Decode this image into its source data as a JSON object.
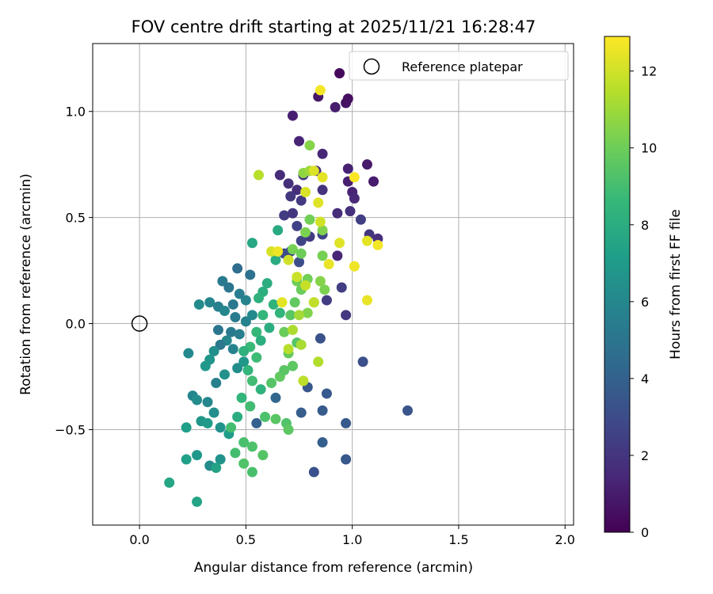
{
  "chart_data": {
    "type": "scatter",
    "title": "FOV centre drift starting at 2025/11/21 16:28:47",
    "xlabel": "Angular distance from reference (arcmin)",
    "ylabel": "Rotation from reference (arcmin)",
    "xlim": [
      -0.22,
      2.04
    ],
    "ylim": [
      -0.95,
      1.32
    ],
    "xticks": [
      0.0,
      0.5,
      1.0,
      1.5,
      2.0
    ],
    "xtick_labels": [
      "0.0",
      "0.5",
      "1.0",
      "1.5",
      "2.0"
    ],
    "yticks": [
      -0.5,
      0.0,
      0.5,
      1.0
    ],
    "ytick_labels": [
      "−0.5",
      "0.0",
      "0.5",
      "1.0"
    ],
    "grid": true,
    "legend": {
      "position": "top-right",
      "entries": [
        "Reference platepar"
      ]
    },
    "reference_point": {
      "x": 0.0,
      "y": 0.0,
      "label": "Reference platepar"
    },
    "colorbar": {
      "label": "Hours from first FF file",
      "range": [
        0,
        12.9
      ],
      "ticks": [
        0,
        2,
        4,
        6,
        8,
        10,
        12
      ],
      "tick_labels": [
        "0",
        "2",
        "4",
        "6",
        "8",
        "10",
        "12"
      ],
      "colormap": [
        "#440154",
        "#482878",
        "#3e4989",
        "#31688e",
        "#26828e",
        "#1f9e89",
        "#35b779",
        "#6ece58",
        "#b5de2b",
        "#fde725"
      ]
    },
    "points": [
      {
        "x": 0.94,
        "y": 1.18,
        "h": 0.3
      },
      {
        "x": 0.98,
        "y": 1.06,
        "h": 0.5
      },
      {
        "x": 0.84,
        "y": 1.07,
        "h": 0.8
      },
      {
        "x": 0.92,
        "y": 1.02,
        "h": 1.0
      },
      {
        "x": 0.97,
        "y": 1.04,
        "h": 0.6
      },
      {
        "x": 0.72,
        "y": 0.98,
        "h": 1.1
      },
      {
        "x": 0.75,
        "y": 0.86,
        "h": 1.3
      },
      {
        "x": 0.86,
        "y": 0.8,
        "h": 1.4
      },
      {
        "x": 0.98,
        "y": 0.73,
        "h": 1.2
      },
      {
        "x": 1.07,
        "y": 0.75,
        "h": 0.9
      },
      {
        "x": 0.83,
        "y": 0.72,
        "h": 1.5
      },
      {
        "x": 0.66,
        "y": 0.7,
        "h": 1.6
      },
      {
        "x": 0.7,
        "y": 0.66,
        "h": 1.8
      },
      {
        "x": 0.74,
        "y": 0.63,
        "h": 1.7
      },
      {
        "x": 0.77,
        "y": 0.7,
        "h": 2.0
      },
      {
        "x": 0.98,
        "y": 0.67,
        "h": 1.1
      },
      {
        "x": 1.0,
        "y": 0.62,
        "h": 1.3
      },
      {
        "x": 1.1,
        "y": 0.67,
        "h": 1.0
      },
      {
        "x": 0.86,
        "y": 0.63,
        "h": 1.9
      },
      {
        "x": 0.71,
        "y": 0.6,
        "h": 2.1
      },
      {
        "x": 0.76,
        "y": 0.58,
        "h": 2.2
      },
      {
        "x": 1.01,
        "y": 0.59,
        "h": 1.5
      },
      {
        "x": 0.68,
        "y": 0.51,
        "h": 2.3
      },
      {
        "x": 0.72,
        "y": 0.52,
        "h": 2.0
      },
      {
        "x": 0.93,
        "y": 0.52,
        "h": 1.6
      },
      {
        "x": 0.99,
        "y": 0.53,
        "h": 1.8
      },
      {
        "x": 1.04,
        "y": 0.49,
        "h": 2.4
      },
      {
        "x": 0.74,
        "y": 0.46,
        "h": 2.5
      },
      {
        "x": 0.8,
        "y": 0.41,
        "h": 2.2
      },
      {
        "x": 0.86,
        "y": 0.42,
        "h": 2.7
      },
      {
        "x": 1.08,
        "y": 0.42,
        "h": 2.0
      },
      {
        "x": 1.12,
        "y": 0.4,
        "h": 1.7
      },
      {
        "x": 0.76,
        "y": 0.39,
        "h": 2.6
      },
      {
        "x": 0.71,
        "y": 0.34,
        "h": 2.8
      },
      {
        "x": 0.68,
        "y": 0.33,
        "h": 3.0
      },
      {
        "x": 0.75,
        "y": 0.29,
        "h": 3.1
      },
      {
        "x": 0.93,
        "y": 0.32,
        "h": 1.4
      },
      {
        "x": 0.95,
        "y": 0.17,
        "h": 2.4
      },
      {
        "x": 0.88,
        "y": 0.11,
        "h": 2.3
      },
      {
        "x": 0.97,
        "y": 0.04,
        "h": 2.1
      },
      {
        "x": 1.05,
        "y": -0.18,
        "h": 3.2
      },
      {
        "x": 0.85,
        "y": -0.07,
        "h": 3.3
      },
      {
        "x": 0.79,
        "y": -0.3,
        "h": 3.5
      },
      {
        "x": 0.88,
        "y": -0.33,
        "h": 3.6
      },
      {
        "x": 0.86,
        "y": -0.41,
        "h": 3.7
      },
      {
        "x": 0.76,
        "y": -0.42,
        "h": 3.8
      },
      {
        "x": 0.97,
        "y": -0.47,
        "h": 3.6
      },
      {
        "x": 0.86,
        "y": -0.56,
        "h": 3.9
      },
      {
        "x": 0.97,
        "y": -0.64,
        "h": 3.5
      },
      {
        "x": 0.82,
        "y": -0.7,
        "h": 3.3
      },
      {
        "x": 1.26,
        "y": -0.41,
        "h": 3.4
      },
      {
        "x": 0.55,
        "y": -0.47,
        "h": 4.0
      },
      {
        "x": 0.64,
        "y": -0.35,
        "h": 4.2
      },
      {
        "x": 0.46,
        "y": 0.26,
        "h": 4.5
      },
      {
        "x": 0.52,
        "y": 0.23,
        "h": 4.8
      },
      {
        "x": 0.39,
        "y": 0.2,
        "h": 5.3
      },
      {
        "x": 0.42,
        "y": 0.17,
        "h": 5.0
      },
      {
        "x": 0.47,
        "y": 0.14,
        "h": 5.5
      },
      {
        "x": 0.5,
        "y": 0.11,
        "h": 5.8
      },
      {
        "x": 0.44,
        "y": 0.09,
        "h": 5.2
      },
      {
        "x": 0.37,
        "y": 0.08,
        "h": 5.6
      },
      {
        "x": 0.33,
        "y": 0.1,
        "h": 5.9
      },
      {
        "x": 0.28,
        "y": 0.09,
        "h": 6.2
      },
      {
        "x": 0.4,
        "y": 0.06,
        "h": 6.0
      },
      {
        "x": 0.45,
        "y": 0.03,
        "h": 5.4
      },
      {
        "x": 0.5,
        "y": 0.01,
        "h": 5.7
      },
      {
        "x": 0.53,
        "y": 0.04,
        "h": 6.1
      },
      {
        "x": 0.37,
        "y": -0.03,
        "h": 5.0
      },
      {
        "x": 0.43,
        "y": -0.04,
        "h": 5.3
      },
      {
        "x": 0.47,
        "y": -0.05,
        "h": 5.5
      },
      {
        "x": 0.41,
        "y": -0.08,
        "h": 6.0
      },
      {
        "x": 0.38,
        "y": -0.1,
        "h": 5.1
      },
      {
        "x": 0.44,
        "y": -0.12,
        "h": 5.8
      },
      {
        "x": 0.35,
        "y": -0.13,
        "h": 6.4
      },
      {
        "x": 0.33,
        "y": -0.17,
        "h": 6.7
      },
      {
        "x": 0.31,
        "y": -0.2,
        "h": 6.9
      },
      {
        "x": 0.4,
        "y": -0.24,
        "h": 6.5
      },
      {
        "x": 0.46,
        "y": -0.21,
        "h": 6.3
      },
      {
        "x": 0.49,
        "y": -0.18,
        "h": 6.8
      },
      {
        "x": 0.36,
        "y": -0.28,
        "h": 5.6
      },
      {
        "x": 0.23,
        "y": -0.14,
        "h": 6.1
      },
      {
        "x": 0.25,
        "y": -0.34,
        "h": 5.9
      },
      {
        "x": 0.27,
        "y": -0.36,
        "h": 6.3
      },
      {
        "x": 0.32,
        "y": -0.37,
        "h": 6.0
      },
      {
        "x": 0.35,
        "y": -0.42,
        "h": 6.4
      },
      {
        "x": 0.29,
        "y": -0.46,
        "h": 6.8
      },
      {
        "x": 0.32,
        "y": -0.47,
        "h": 7.0
      },
      {
        "x": 0.22,
        "y": -0.49,
        "h": 7.2
      },
      {
        "x": 0.38,
        "y": -0.49,
        "h": 6.6
      },
      {
        "x": 0.42,
        "y": -0.52,
        "h": 7.1
      },
      {
        "x": 0.27,
        "y": -0.62,
        "h": 6.9
      },
      {
        "x": 0.22,
        "y": -0.64,
        "h": 7.3
      },
      {
        "x": 0.33,
        "y": -0.67,
        "h": 6.2
      },
      {
        "x": 0.38,
        "y": -0.64,
        "h": 6.6
      },
      {
        "x": 0.36,
        "y": -0.68,
        "h": 7.4
      },
      {
        "x": 0.14,
        "y": -0.75,
        "h": 7.6
      },
      {
        "x": 0.27,
        "y": -0.84,
        "h": 7.5
      },
      {
        "x": 0.53,
        "y": 0.38,
        "h": 7.7
      },
      {
        "x": 0.65,
        "y": 0.44,
        "h": 7.8
      },
      {
        "x": 0.64,
        "y": 0.3,
        "h": 7.9
      },
      {
        "x": 0.6,
        "y": 0.19,
        "h": 8.0
      },
      {
        "x": 0.58,
        "y": 0.15,
        "h": 8.1
      },
      {
        "x": 0.56,
        "y": 0.12,
        "h": 8.2
      },
      {
        "x": 0.63,
        "y": 0.09,
        "h": 8.3
      },
      {
        "x": 0.66,
        "y": 0.05,
        "h": 8.4
      },
      {
        "x": 0.58,
        "y": 0.04,
        "h": 8.5
      },
      {
        "x": 0.61,
        "y": -0.02,
        "h": 8.0
      },
      {
        "x": 0.55,
        "y": -0.04,
        "h": 8.6
      },
      {
        "x": 0.57,
        "y": -0.08,
        "h": 8.1
      },
      {
        "x": 0.52,
        "y": -0.11,
        "h": 8.7
      },
      {
        "x": 0.49,
        "y": -0.13,
        "h": 8.2
      },
      {
        "x": 0.55,
        "y": -0.16,
        "h": 8.8
      },
      {
        "x": 0.51,
        "y": -0.22,
        "h": 8.4
      },
      {
        "x": 0.53,
        "y": -0.27,
        "h": 8.9
      },
      {
        "x": 0.57,
        "y": -0.31,
        "h": 8.3
      },
      {
        "x": 0.48,
        "y": -0.35,
        "h": 8.5
      },
      {
        "x": 0.52,
        "y": -0.39,
        "h": 8.9
      },
      {
        "x": 0.46,
        "y": -0.44,
        "h": 8.0
      },
      {
        "x": 0.43,
        "y": -0.49,
        "h": 9.0
      },
      {
        "x": 0.49,
        "y": -0.56,
        "h": 9.1
      },
      {
        "x": 0.53,
        "y": -0.58,
        "h": 9.2
      },
      {
        "x": 0.45,
        "y": -0.61,
        "h": 9.0
      },
      {
        "x": 0.49,
        "y": -0.66,
        "h": 9.3
      },
      {
        "x": 0.53,
        "y": -0.7,
        "h": 9.1
      },
      {
        "x": 0.58,
        "y": -0.62,
        "h": 9.4
      },
      {
        "x": 0.59,
        "y": -0.44,
        "h": 9.2
      },
      {
        "x": 0.64,
        "y": -0.45,
        "h": 9.5
      },
      {
        "x": 0.69,
        "y": -0.47,
        "h": 9.3
      },
      {
        "x": 0.7,
        "y": -0.5,
        "h": 9.6
      },
      {
        "x": 0.62,
        "y": -0.28,
        "h": 9.4
      },
      {
        "x": 0.66,
        "y": -0.25,
        "h": 9.7
      },
      {
        "x": 0.68,
        "y": -0.22,
        "h": 9.5
      },
      {
        "x": 0.72,
        "y": -0.2,
        "h": 9.6
      },
      {
        "x": 0.7,
        "y": -0.14,
        "h": 9.8
      },
      {
        "x": 0.74,
        "y": -0.09,
        "h": 9.4
      },
      {
        "x": 0.68,
        "y": -0.04,
        "h": 9.9
      },
      {
        "x": 0.71,
        "y": 0.04,
        "h": 9.5
      },
      {
        "x": 0.73,
        "y": 0.1,
        "h": 9.7
      },
      {
        "x": 0.76,
        "y": 0.16,
        "h": 9.9
      },
      {
        "x": 0.74,
        "y": 0.2,
        "h": 10.0
      },
      {
        "x": 0.79,
        "y": 0.21,
        "h": 10.1
      },
      {
        "x": 0.72,
        "y": 0.35,
        "h": 10.2
      },
      {
        "x": 0.76,
        "y": 0.33,
        "h": 10.0
      },
      {
        "x": 0.78,
        "y": 0.43,
        "h": 10.3
      },
      {
        "x": 0.8,
        "y": 0.49,
        "h": 10.1
      },
      {
        "x": 0.86,
        "y": 0.44,
        "h": 10.4
      },
      {
        "x": 0.86,
        "y": 0.32,
        "h": 10.2
      },
      {
        "x": 0.85,
        "y": 0.2,
        "h": 10.5
      },
      {
        "x": 0.87,
        "y": 0.16,
        "h": 10.3
      },
      {
        "x": 0.82,
        "y": 0.1,
        "h": 10.6
      },
      {
        "x": 0.79,
        "y": 0.05,
        "h": 10.4
      },
      {
        "x": 0.8,
        "y": 0.84,
        "h": 10.5
      },
      {
        "x": 0.77,
        "y": 0.71,
        "h": 10.7
      },
      {
        "x": 0.8,
        "y": 0.72,
        "h": 11.0
      },
      {
        "x": 0.75,
        "y": 0.04,
        "h": 11.1
      },
      {
        "x": 0.72,
        "y": -0.03,
        "h": 11.3
      },
      {
        "x": 0.7,
        "y": -0.12,
        "h": 11.5
      },
      {
        "x": 0.76,
        "y": -0.1,
        "h": 11.2
      },
      {
        "x": 0.84,
        "y": -0.18,
        "h": 11.4
      },
      {
        "x": 0.77,
        "y": -0.27,
        "h": 11.6
      },
      {
        "x": 0.82,
        "y": 0.1,
        "h": 11.7
      },
      {
        "x": 0.78,
        "y": 0.18,
        "h": 11.8
      },
      {
        "x": 0.74,
        "y": 0.22,
        "h": 11.9
      },
      {
        "x": 0.7,
        "y": 0.3,
        "h": 12.0
      },
      {
        "x": 0.62,
        "y": 0.34,
        "h": 12.1
      },
      {
        "x": 0.56,
        "y": 0.7,
        "h": 11.5
      },
      {
        "x": 0.78,
        "y": 0.62,
        "h": 12.2
      },
      {
        "x": 0.84,
        "y": 0.57,
        "h": 12.3
      },
      {
        "x": 0.85,
        "y": 0.48,
        "h": 12.0
      },
      {
        "x": 0.86,
        "y": 0.69,
        "h": 12.4
      },
      {
        "x": 0.89,
        "y": 0.28,
        "h": 12.5
      },
      {
        "x": 0.94,
        "y": 0.38,
        "h": 12.3
      },
      {
        "x": 1.01,
        "y": 0.27,
        "h": 12.6
      },
      {
        "x": 1.07,
        "y": 0.39,
        "h": 12.4
      },
      {
        "x": 1.12,
        "y": 0.37,
        "h": 12.7
      },
      {
        "x": 1.07,
        "y": 0.11,
        "h": 12.5
      },
      {
        "x": 1.01,
        "y": 0.69,
        "h": 12.8
      },
      {
        "x": 0.85,
        "y": 1.1,
        "h": 12.7
      },
      {
        "x": 0.82,
        "y": 0.72,
        "h": 12.2
      },
      {
        "x": 0.65,
        "y": 0.34,
        "h": 12.6
      },
      {
        "x": 0.67,
        "y": 0.1,
        "h": 12.4
      }
    ]
  }
}
